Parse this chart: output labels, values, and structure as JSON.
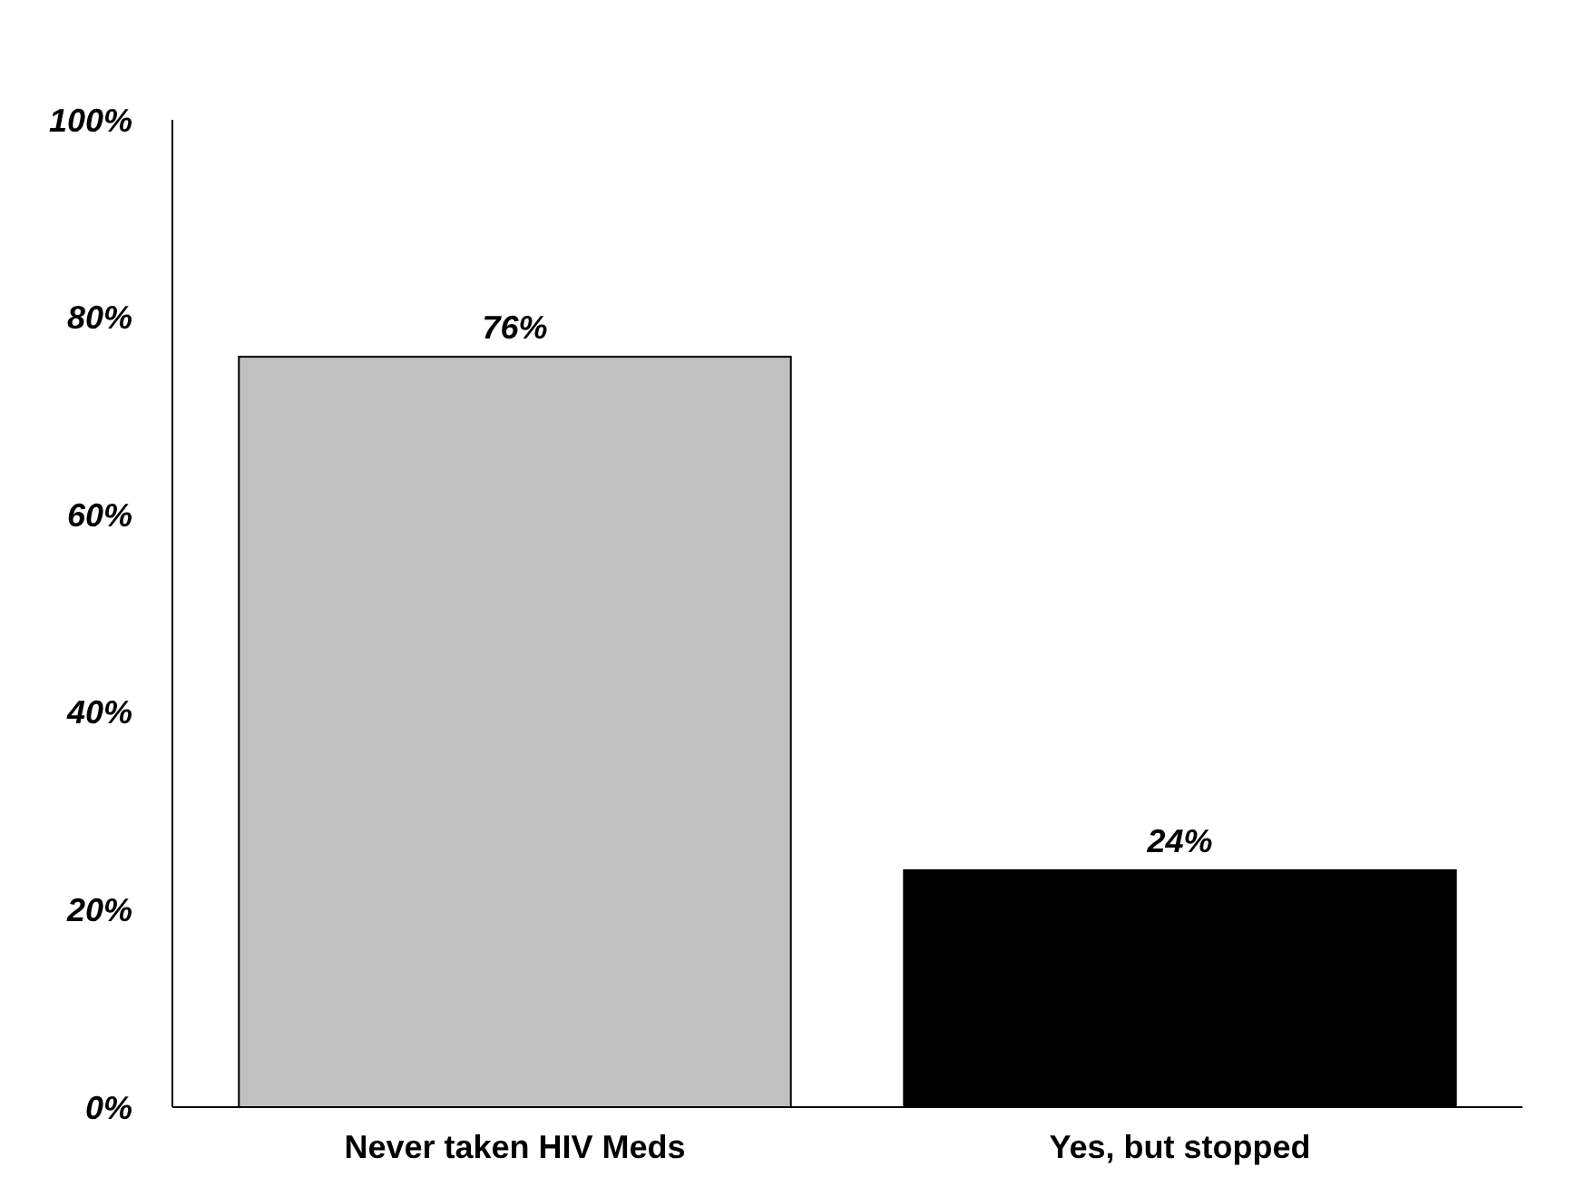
{
  "chart_data": {
    "type": "bar",
    "categories": [
      "Never taken HIV Meds",
      "Yes, but stopped"
    ],
    "values": [
      76,
      24
    ],
    "colors": [
      "#c0c0c0",
      "#000000"
    ],
    "ylim": [
      0,
      100
    ],
    "yticks": [
      {
        "value": 0,
        "label": "0%"
      },
      {
        "value": 20,
        "label": "20%"
      },
      {
        "value": 40,
        "label": "40%"
      },
      {
        "value": 60,
        "label": "60%"
      },
      {
        "value": 80,
        "label": "80%"
      },
      {
        "value": 100,
        "label": "100%"
      }
    ],
    "value_labels": [
      "76%",
      "24%"
    ],
    "grid": false
  }
}
